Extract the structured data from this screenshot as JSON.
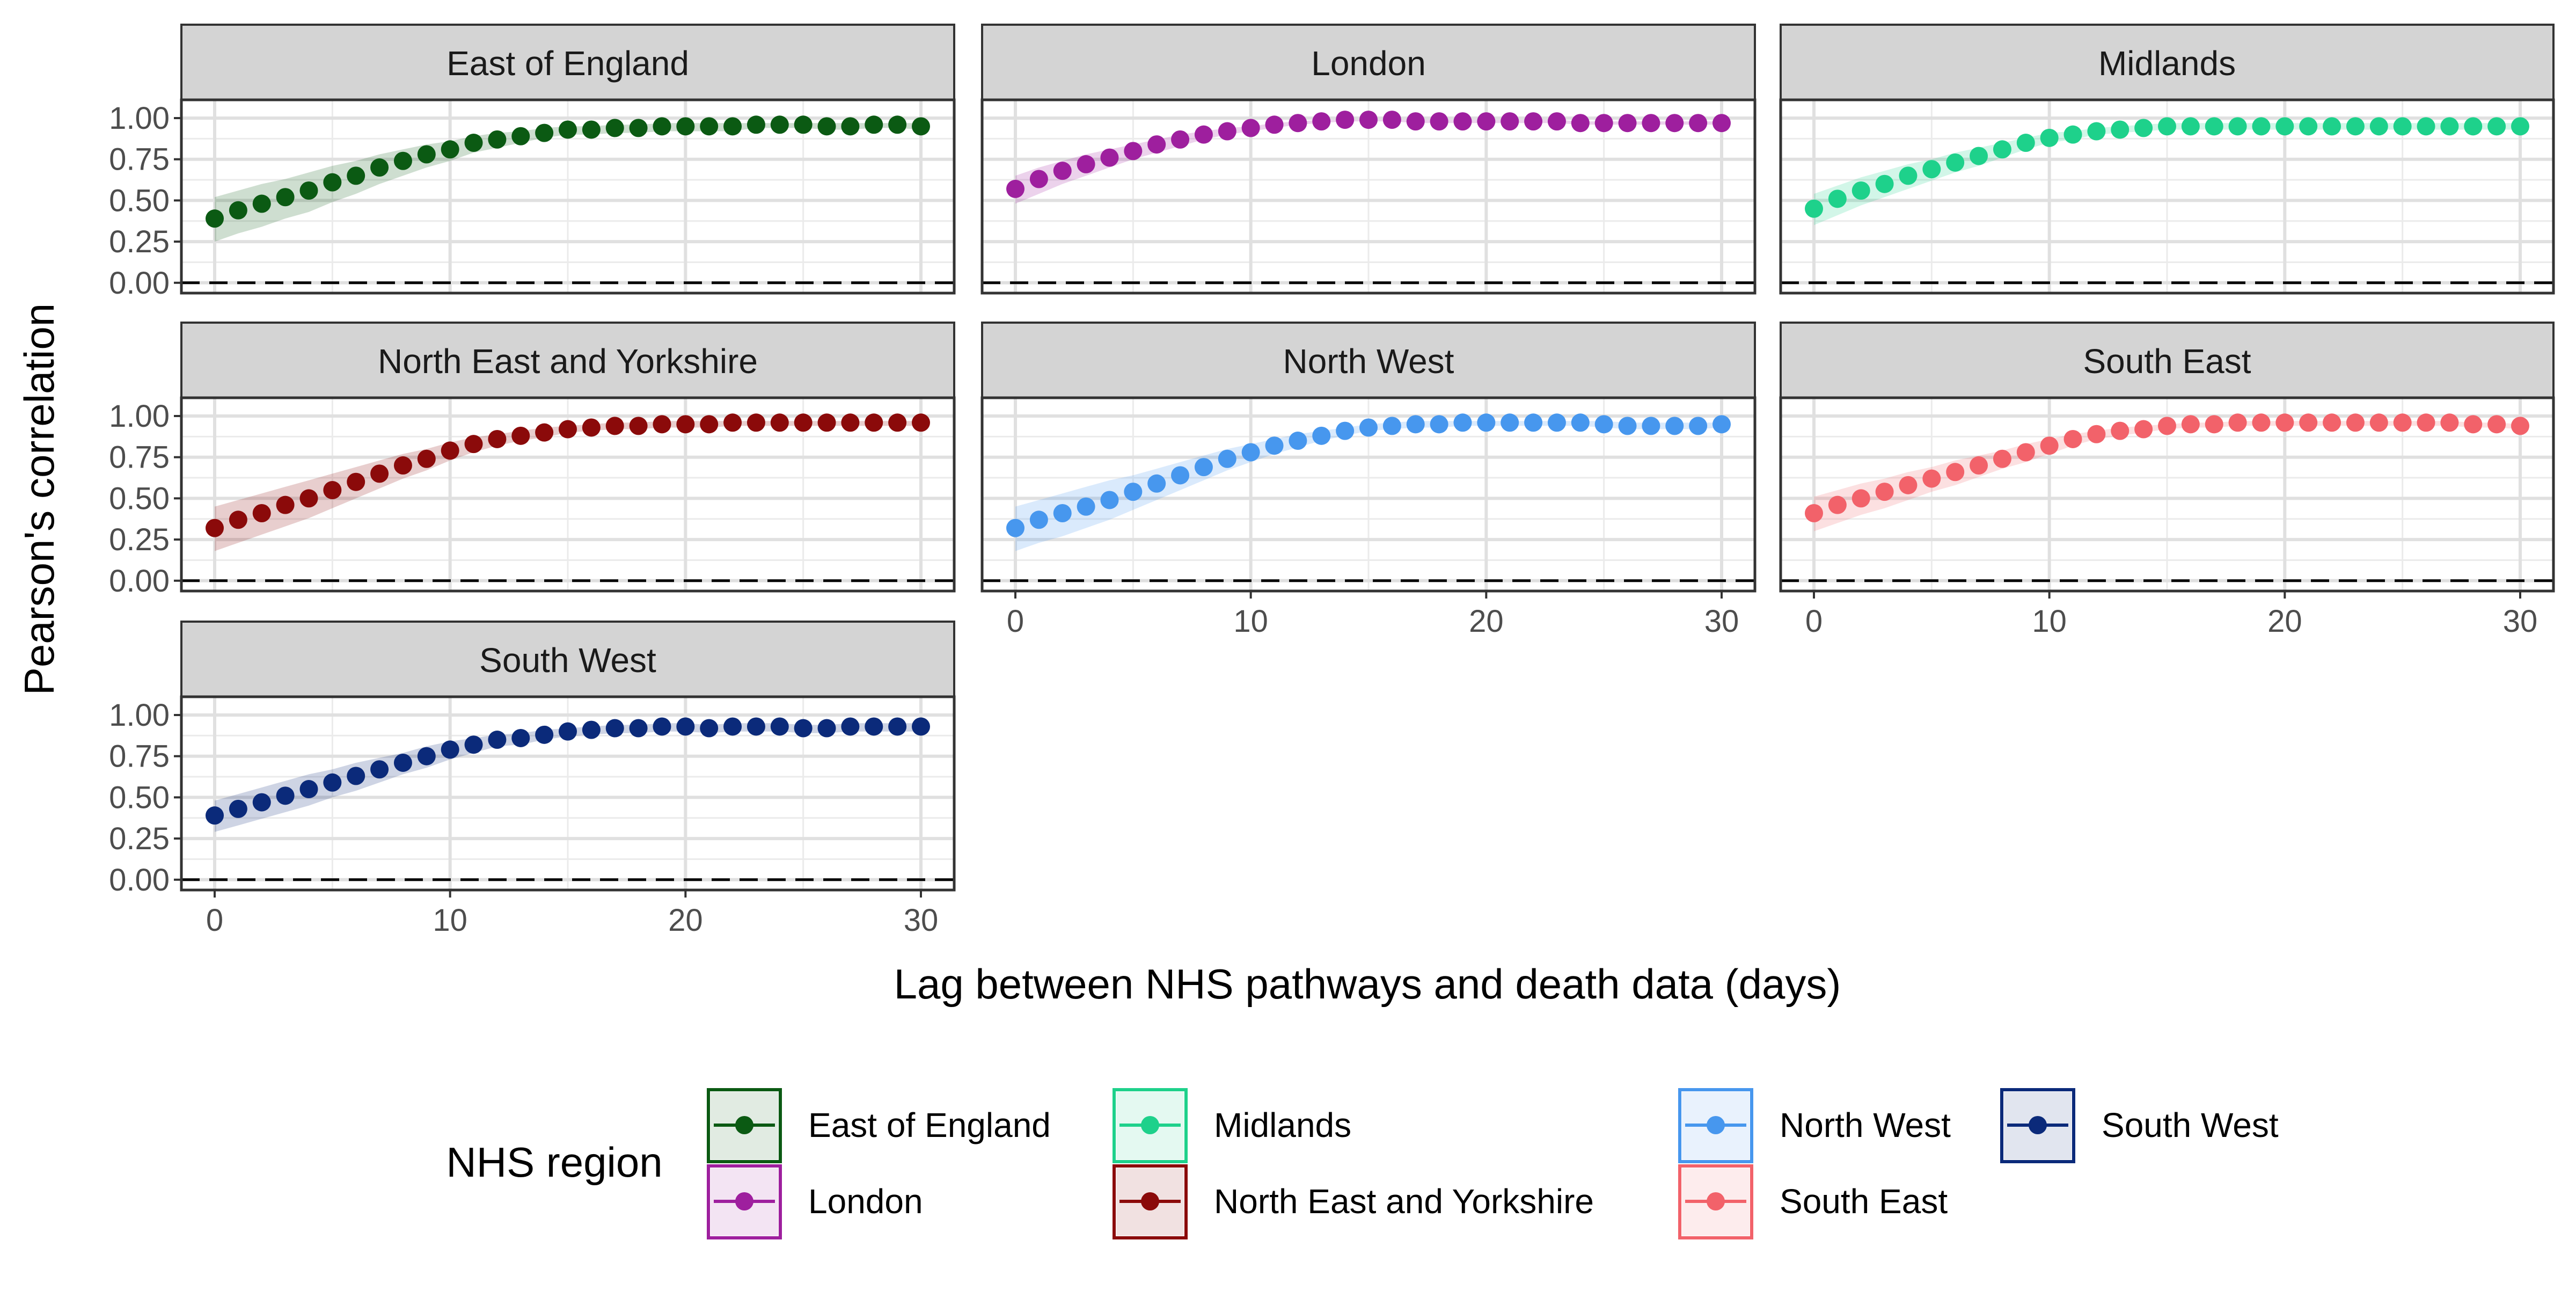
{
  "chart_data": {
    "type": "scatter",
    "layout": "facet_wrap",
    "ylabel": "Pearson's correlation",
    "xlabel": "Lag between NHS pathways and death data (days)",
    "xlim": [
      0,
      30
    ],
    "xticks": [
      0,
      10,
      20,
      30
    ],
    "ylim": [
      0,
      1
    ],
    "yticks": [
      0.0,
      0.25,
      0.5,
      0.75,
      1.0
    ],
    "ytick_labels": [
      "0.00",
      "0.25",
      "0.50",
      "0.75",
      "1.00"
    ],
    "reference_line": {
      "y": 0,
      "style": "dashed"
    },
    "grid": true,
    "legend": {
      "title": "NHS region",
      "position": "bottom"
    },
    "x": [
      0,
      1,
      2,
      3,
      4,
      5,
      6,
      7,
      8,
      9,
      10,
      11,
      12,
      13,
      14,
      15,
      16,
      17,
      18,
      19,
      20,
      21,
      22,
      23,
      24,
      25,
      26,
      27,
      28,
      29,
      30
    ],
    "series": [
      {
        "name": "East of England",
        "color": "#0b5a13",
        "values": [
          0.39,
          0.44,
          0.48,
          0.52,
          0.56,
          0.61,
          0.65,
          0.7,
          0.74,
          0.78,
          0.81,
          0.85,
          0.87,
          0.89,
          0.91,
          0.93,
          0.93,
          0.94,
          0.94,
          0.95,
          0.95,
          0.95,
          0.95,
          0.96,
          0.96,
          0.96,
          0.95,
          0.95,
          0.96,
          0.96,
          0.95
        ],
        "lower": [
          0.25,
          0.3,
          0.34,
          0.39,
          0.43,
          0.49,
          0.54,
          0.6,
          0.65,
          0.7,
          0.74,
          0.79,
          0.82,
          0.85,
          0.88,
          0.9,
          0.9,
          0.91,
          0.91,
          0.92,
          0.92,
          0.92,
          0.92,
          0.94,
          0.94,
          0.94,
          0.93,
          0.93,
          0.94,
          0.94,
          0.93
        ],
        "upper": [
          0.52,
          0.56,
          0.6,
          0.63,
          0.67,
          0.71,
          0.74,
          0.78,
          0.81,
          0.84,
          0.86,
          0.89,
          0.91,
          0.92,
          0.94,
          0.95,
          0.95,
          0.96,
          0.96,
          0.97,
          0.97,
          0.97,
          0.97,
          0.97,
          0.97,
          0.97,
          0.97,
          0.97,
          0.97,
          0.97,
          0.97
        ]
      },
      {
        "name": "London",
        "color": "#9e1f9e",
        "values": [
          0.57,
          0.63,
          0.68,
          0.72,
          0.76,
          0.8,
          0.84,
          0.87,
          0.9,
          0.92,
          0.94,
          0.96,
          0.97,
          0.98,
          0.99,
          0.99,
          0.99,
          0.98,
          0.98,
          0.98,
          0.98,
          0.98,
          0.98,
          0.98,
          0.97,
          0.97,
          0.97,
          0.97,
          0.97,
          0.97,
          0.97
        ],
        "lower": [
          0.48,
          0.54,
          0.6,
          0.65,
          0.7,
          0.75,
          0.79,
          0.83,
          0.87,
          0.9,
          0.92,
          0.94,
          0.96,
          0.97,
          0.98,
          0.98,
          0.98,
          0.97,
          0.97,
          0.97,
          0.97,
          0.97,
          0.97,
          0.97,
          0.96,
          0.96,
          0.96,
          0.96,
          0.96,
          0.96,
          0.96
        ],
        "upper": [
          0.65,
          0.7,
          0.74,
          0.78,
          0.81,
          0.84,
          0.87,
          0.9,
          0.92,
          0.94,
          0.95,
          0.97,
          0.98,
          0.99,
          0.99,
          0.99,
          0.99,
          0.99,
          0.99,
          0.99,
          0.99,
          0.99,
          0.99,
          0.99,
          0.98,
          0.98,
          0.98,
          0.98,
          0.98,
          0.98,
          0.98
        ]
      },
      {
        "name": "Midlands",
        "color": "#1ed18b",
        "values": [
          0.45,
          0.51,
          0.56,
          0.6,
          0.65,
          0.69,
          0.73,
          0.77,
          0.81,
          0.85,
          0.88,
          0.9,
          0.92,
          0.93,
          0.94,
          0.95,
          0.95,
          0.95,
          0.95,
          0.95,
          0.95,
          0.95,
          0.95,
          0.95,
          0.95,
          0.95,
          0.95,
          0.95,
          0.95,
          0.95,
          0.95
        ],
        "lower": [
          0.35,
          0.41,
          0.47,
          0.52,
          0.57,
          0.62,
          0.67,
          0.71,
          0.76,
          0.81,
          0.85,
          0.87,
          0.9,
          0.91,
          0.92,
          0.93,
          0.93,
          0.93,
          0.93,
          0.93,
          0.93,
          0.93,
          0.93,
          0.93,
          0.93,
          0.93,
          0.93,
          0.93,
          0.93,
          0.93,
          0.93
        ],
        "upper": [
          0.54,
          0.59,
          0.64,
          0.68,
          0.72,
          0.75,
          0.79,
          0.82,
          0.85,
          0.88,
          0.91,
          0.92,
          0.94,
          0.95,
          0.96,
          0.97,
          0.97,
          0.97,
          0.97,
          0.97,
          0.97,
          0.97,
          0.97,
          0.97,
          0.97,
          0.97,
          0.97,
          0.97,
          0.97,
          0.97,
          0.97
        ]
      },
      {
        "name": "North East and Yorkshire",
        "color": "#8b0a0a",
        "values": [
          0.32,
          0.37,
          0.41,
          0.46,
          0.5,
          0.55,
          0.6,
          0.65,
          0.7,
          0.74,
          0.79,
          0.83,
          0.86,
          0.88,
          0.9,
          0.92,
          0.93,
          0.94,
          0.94,
          0.95,
          0.95,
          0.95,
          0.96,
          0.96,
          0.96,
          0.96,
          0.96,
          0.96,
          0.96,
          0.96,
          0.96
        ],
        "lower": [
          0.18,
          0.23,
          0.28,
          0.33,
          0.38,
          0.44,
          0.5,
          0.56,
          0.62,
          0.67,
          0.73,
          0.78,
          0.82,
          0.85,
          0.87,
          0.9,
          0.91,
          0.92,
          0.92,
          0.93,
          0.93,
          0.93,
          0.94,
          0.94,
          0.94,
          0.94,
          0.94,
          0.94,
          0.94,
          0.94,
          0.94
        ],
        "upper": [
          0.45,
          0.49,
          0.53,
          0.57,
          0.61,
          0.65,
          0.69,
          0.73,
          0.77,
          0.8,
          0.84,
          0.87,
          0.89,
          0.91,
          0.93,
          0.94,
          0.95,
          0.96,
          0.96,
          0.97,
          0.97,
          0.97,
          0.97,
          0.97,
          0.97,
          0.97,
          0.97,
          0.97,
          0.97,
          0.97,
          0.97
        ]
      },
      {
        "name": "North West",
        "color": "#4797ee",
        "values": [
          0.32,
          0.37,
          0.41,
          0.45,
          0.49,
          0.54,
          0.59,
          0.64,
          0.69,
          0.74,
          0.78,
          0.82,
          0.85,
          0.88,
          0.91,
          0.93,
          0.94,
          0.95,
          0.95,
          0.96,
          0.96,
          0.96,
          0.96,
          0.96,
          0.96,
          0.95,
          0.94,
          0.94,
          0.94,
          0.94,
          0.95
        ],
        "lower": [
          0.18,
          0.23,
          0.27,
          0.32,
          0.37,
          0.43,
          0.49,
          0.55,
          0.61,
          0.67,
          0.72,
          0.77,
          0.81,
          0.85,
          0.88,
          0.91,
          0.92,
          0.93,
          0.93,
          0.94,
          0.94,
          0.94,
          0.94,
          0.94,
          0.94,
          0.93,
          0.92,
          0.92,
          0.92,
          0.92,
          0.93
        ],
        "upper": [
          0.45,
          0.49,
          0.53,
          0.57,
          0.61,
          0.64,
          0.68,
          0.72,
          0.76,
          0.8,
          0.83,
          0.86,
          0.89,
          0.91,
          0.93,
          0.95,
          0.96,
          0.97,
          0.97,
          0.97,
          0.97,
          0.97,
          0.97,
          0.97,
          0.97,
          0.97,
          0.96,
          0.96,
          0.96,
          0.96,
          0.96
        ]
      },
      {
        "name": "South East",
        "color": "#f2626a",
        "values": [
          0.41,
          0.46,
          0.5,
          0.54,
          0.58,
          0.62,
          0.66,
          0.7,
          0.74,
          0.78,
          0.82,
          0.86,
          0.89,
          0.91,
          0.92,
          0.94,
          0.95,
          0.95,
          0.96,
          0.96,
          0.96,
          0.96,
          0.96,
          0.96,
          0.96,
          0.96,
          0.96,
          0.96,
          0.95,
          0.95,
          0.94
        ],
        "lower": [
          0.3,
          0.35,
          0.4,
          0.44,
          0.49,
          0.54,
          0.58,
          0.63,
          0.68,
          0.72,
          0.77,
          0.82,
          0.86,
          0.88,
          0.9,
          0.92,
          0.93,
          0.93,
          0.94,
          0.94,
          0.94,
          0.94,
          0.94,
          0.94,
          0.94,
          0.94,
          0.94,
          0.94,
          0.93,
          0.93,
          0.92
        ],
        "upper": [
          0.51,
          0.55,
          0.59,
          0.62,
          0.66,
          0.69,
          0.73,
          0.76,
          0.79,
          0.83,
          0.86,
          0.89,
          0.91,
          0.93,
          0.94,
          0.95,
          0.96,
          0.96,
          0.97,
          0.97,
          0.97,
          0.97,
          0.97,
          0.97,
          0.97,
          0.97,
          0.97,
          0.97,
          0.96,
          0.96,
          0.95
        ]
      },
      {
        "name": "South West",
        "color": "#0b2a7a",
        "values": [
          0.39,
          0.43,
          0.47,
          0.51,
          0.55,
          0.59,
          0.63,
          0.67,
          0.71,
          0.75,
          0.79,
          0.82,
          0.85,
          0.86,
          0.88,
          0.9,
          0.91,
          0.92,
          0.92,
          0.93,
          0.93,
          0.92,
          0.93,
          0.93,
          0.93,
          0.92,
          0.92,
          0.93,
          0.93,
          0.93,
          0.93
        ],
        "lower": [
          0.29,
          0.33,
          0.37,
          0.41,
          0.45,
          0.5,
          0.54,
          0.59,
          0.64,
          0.68,
          0.73,
          0.77,
          0.81,
          0.82,
          0.85,
          0.87,
          0.88,
          0.89,
          0.89,
          0.9,
          0.9,
          0.89,
          0.9,
          0.9,
          0.9,
          0.89,
          0.89,
          0.9,
          0.9,
          0.9,
          0.9
        ],
        "upper": [
          0.48,
          0.52,
          0.56,
          0.6,
          0.64,
          0.67,
          0.71,
          0.74,
          0.77,
          0.81,
          0.84,
          0.86,
          0.88,
          0.89,
          0.91,
          0.92,
          0.93,
          0.94,
          0.94,
          0.95,
          0.95,
          0.94,
          0.95,
          0.95,
          0.95,
          0.94,
          0.94,
          0.95,
          0.95,
          0.95,
          0.95
        ]
      }
    ]
  }
}
